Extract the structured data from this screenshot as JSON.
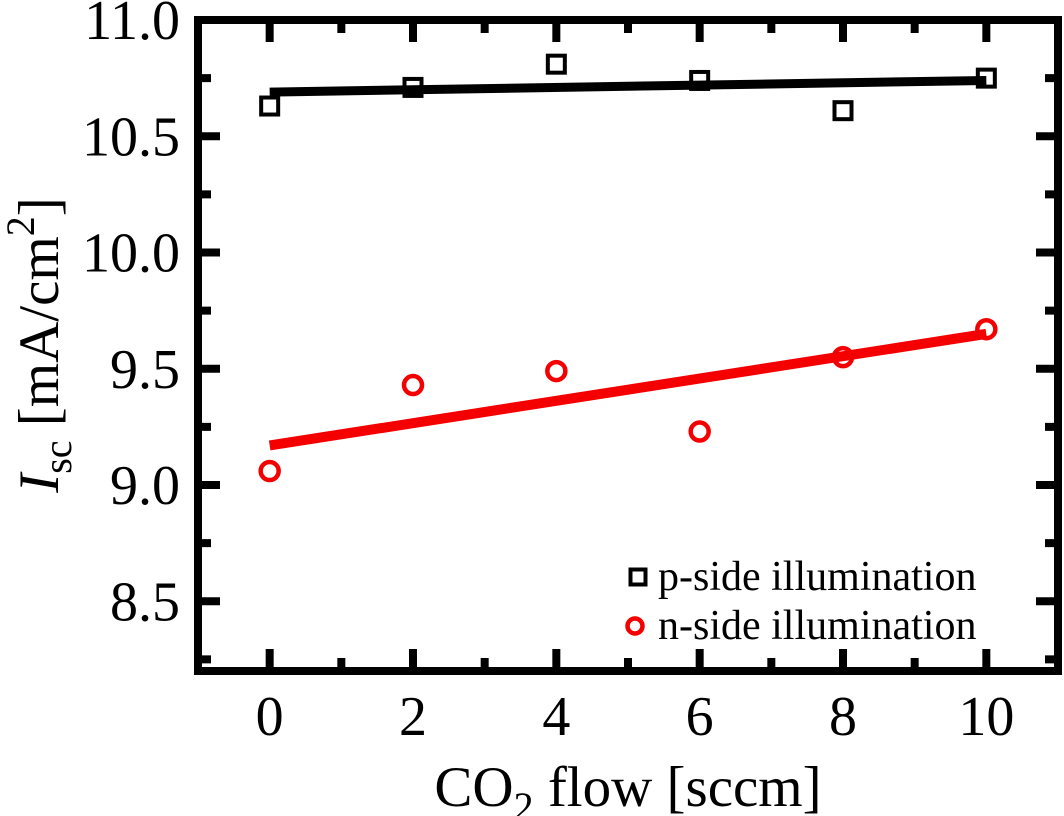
{
  "chart_data": {
    "type": "scatter",
    "title": "",
    "xlabel": {
      "pre": "CO",
      "sub": "2",
      "post": " flow [sccm]"
    },
    "ylabel": {
      "symbol": "I",
      "symbol_sub": "sc",
      "unit_pre": " [mA/cm",
      "unit_sup": "2",
      "unit_post": "]"
    },
    "xlim": [
      -1,
      11
    ],
    "ylim": [
      8.2,
      11.0
    ],
    "x_major_ticks": [
      0,
      2,
      4,
      6,
      8,
      10
    ],
    "x_minor_ticks": [
      1,
      3,
      5,
      7,
      9
    ],
    "x_tick_labels": [
      "0",
      "2",
      "4",
      "6",
      "8",
      "10"
    ],
    "y_major_ticks": [
      11.0,
      10.5,
      10.0,
      9.5,
      9.0,
      8.5
    ],
    "y_minor_ticks": [
      10.75,
      10.25,
      9.75,
      9.25,
      8.75,
      8.25
    ],
    "y_tick_labels": [
      "11.0",
      "10.5",
      "10.0",
      "9.5",
      "9.0",
      "8.5"
    ],
    "x": [
      0,
      2,
      4,
      6,
      8,
      10
    ],
    "series": [
      {
        "key": "p-side",
        "name": "p-side illumination",
        "marker": "square",
        "color": "#000000",
        "values": [
          10.63,
          10.71,
          10.81,
          10.74,
          10.61,
          10.75
        ],
        "fit_line": {
          "x": [
            0,
            10
          ],
          "y": [
            10.69,
            10.74
          ]
        }
      },
      {
        "key": "n-side",
        "name": "n-side illumination",
        "marker": "circle",
        "color": "#f40000",
        "values": [
          9.06,
          9.43,
          9.49,
          9.23,
          9.55,
          9.67
        ],
        "fit_line": {
          "x": [
            0,
            10
          ],
          "y": [
            9.17,
            9.65
          ]
        }
      }
    ],
    "legend": {
      "position": "lower-right"
    },
    "grid": false,
    "frame": true
  }
}
